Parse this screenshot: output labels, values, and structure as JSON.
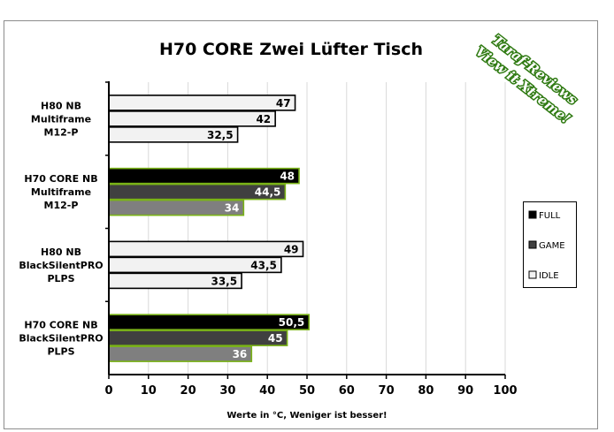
{
  "watermark": {
    "line1": "Taraf-Reviews",
    "line2": "View it Xtreme!",
    "glow_color": "#9dff4a"
  },
  "chart_data": {
    "type": "bar",
    "orientation": "horizontal",
    "title": "H70 CORE Zwei Lüfter Tisch",
    "xlabel": "Werte in °C, Weniger ist besser!",
    "ylabel": "",
    "xlim": [
      0,
      100
    ],
    "xticks": [
      0,
      10,
      20,
      30,
      40,
      50,
      60,
      70,
      80,
      90,
      100
    ],
    "grid": "vertical",
    "legend_position": "right",
    "categories": [
      [
        "H80 NB",
        "Multiframe",
        "M12-P"
      ],
      [
        "H70 CORE  NB",
        "Multiframe",
        "M12-P"
      ],
      [
        "H80 NB",
        "BlackSilentPRO",
        "PLPS"
      ],
      [
        "H70 CORE  NB",
        "BlackSilentPRO",
        "PLPS"
      ]
    ],
    "series": [
      {
        "name": "FULL",
        "values": [
          47,
          48,
          49,
          50.5
        ],
        "labels": [
          "47",
          "48",
          "49",
          "50,5"
        ]
      },
      {
        "name": "GAME",
        "values": [
          42,
          44.5,
          43.5,
          45
        ],
        "labels": [
          "42",
          "44,5",
          "43,5",
          "45"
        ]
      },
      {
        "name": "IDLE",
        "values": [
          32.5,
          34,
          33.5,
          36
        ],
        "labels": [
          "32,5",
          "34",
          "33,5",
          "36"
        ]
      }
    ],
    "category_styles": [
      {
        "fills": [
          "#f2f2f2",
          "#f2f2f2",
          "#f2f2f2"
        ],
        "stroke": "#000000",
        "text": "#000000"
      },
      {
        "fills": [
          "#000000",
          "#404040",
          "#7f7f7f"
        ],
        "stroke": "#7ab317",
        "text": "#ffffff"
      },
      {
        "fills": [
          "#f2f2f2",
          "#f2f2f2",
          "#f2f2f2"
        ],
        "stroke": "#000000",
        "text": "#000000"
      },
      {
        "fills": [
          "#000000",
          "#404040",
          "#7f7f7f"
        ],
        "stroke": "#7ab317",
        "text": "#ffffff"
      }
    ],
    "legend_fills": [
      "#000000",
      "#404040",
      "#f2f2f2"
    ]
  }
}
